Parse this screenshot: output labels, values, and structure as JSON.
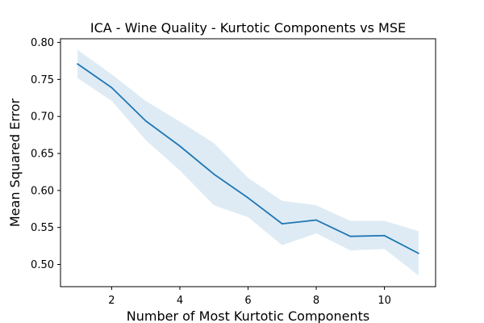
{
  "chart_data": {
    "type": "line",
    "title": "ICA - Wine Quality - Kurtotic Components vs MSE",
    "xlabel": "Number of Most Kurtotic Components",
    "ylabel": "Mean Squared Error",
    "xlim": [
      0.5,
      11.5
    ],
    "ylim": [
      0.47,
      0.805
    ],
    "x_ticks": [
      2,
      4,
      6,
      8,
      10
    ],
    "y_ticks": [
      0.5,
      0.55,
      0.6,
      0.65,
      0.7,
      0.75,
      0.8
    ],
    "y_tick_labels": [
      "0.50",
      "0.55",
      "0.60",
      "0.65",
      "0.70",
      "0.75",
      "0.80"
    ],
    "grid": false,
    "colors": {
      "line": "#1f77b4",
      "band": "#1f77b4"
    },
    "series": [
      {
        "x": [
          1,
          2,
          3,
          4,
          5,
          6,
          7,
          8,
          9,
          10,
          11
        ],
        "values": [
          0.771,
          0.739,
          0.694,
          0.66,
          0.622,
          0.59,
          0.555,
          0.56,
          0.538,
          0.539,
          0.515
        ],
        "lower": [
          0.752,
          0.721,
          0.668,
          0.627,
          0.58,
          0.564,
          0.526,
          0.542,
          0.519,
          0.521,
          0.485
        ],
        "upper": [
          0.79,
          0.757,
          0.721,
          0.693,
          0.664,
          0.617,
          0.586,
          0.58,
          0.559,
          0.559,
          0.545
        ]
      }
    ]
  }
}
